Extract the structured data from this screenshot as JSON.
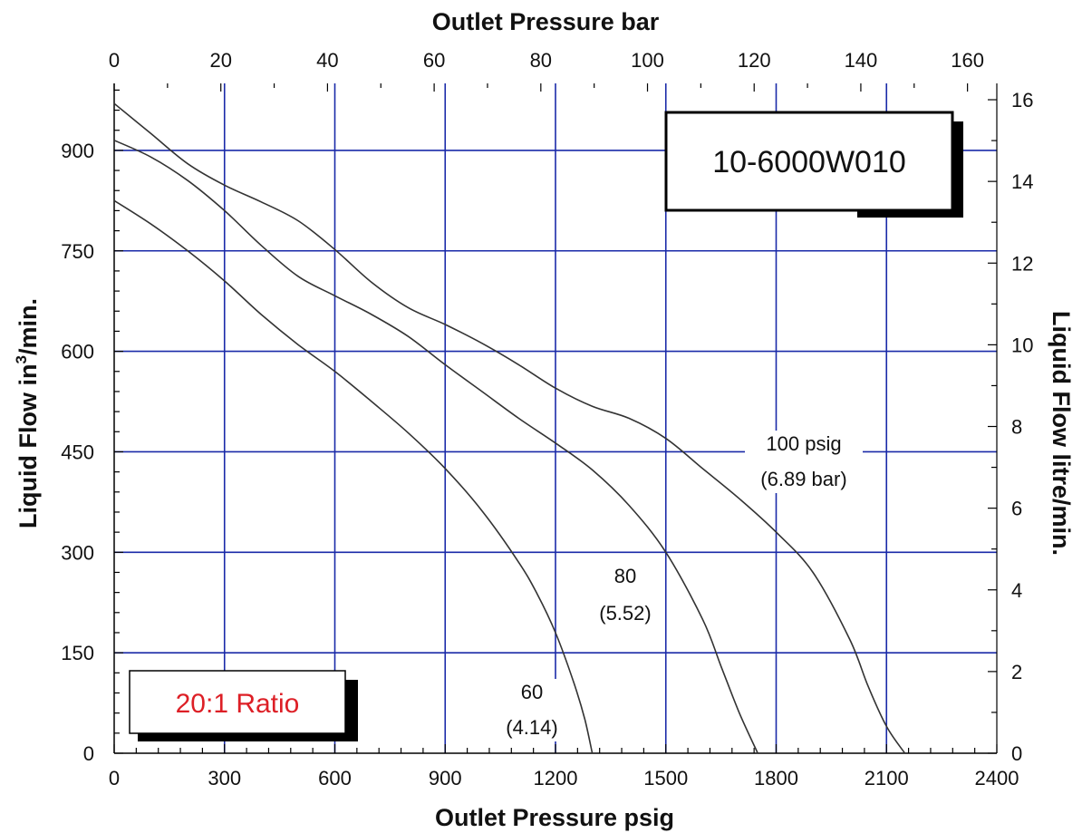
{
  "chart_data": {
    "type": "line",
    "title": "",
    "model_label": "10-6000W010",
    "ratio_label": "20:1 Ratio",
    "xlabel": "Outlet Pressure psig",
    "x2label": "Outlet Pressure bar",
    "ylabel_left": {
      "main": "Liquid Flow in",
      "sup": "3",
      "end": "/min."
    },
    "ylabel_right": "Liquid Flow litre/min.",
    "xlim": [
      0,
      2400
    ],
    "ylim": [
      0,
      1000
    ],
    "x2lim": [
      0,
      165.5
    ],
    "y2lim": [
      0,
      16.4
    ],
    "x_ticks": [
      "0",
      "300",
      "600",
      "900",
      "1200",
      "1500",
      "1800",
      "2100",
      "2400"
    ],
    "y_ticks": [
      "0",
      "150",
      "300",
      "450",
      "600",
      "750",
      "900"
    ],
    "x2_ticks": [
      "0",
      "20",
      "40",
      "60",
      "80",
      "100",
      "120",
      "140",
      "160"
    ],
    "y2_ticks": [
      "0",
      "2",
      "4",
      "6",
      "8",
      "10",
      "12",
      "14",
      "16"
    ],
    "grid": true,
    "colors": {
      "grid": "#1a2aa8",
      "curve": "#333333",
      "ratio_text": "#dd1f26",
      "text": "#111111"
    },
    "series": [
      {
        "name": "60 (4.14)",
        "annotation": [
          "60",
          "(4.14)"
        ],
        "x": [
          0,
          100,
          200,
          300,
          400,
          500,
          600,
          700,
          800,
          900,
          1000,
          1100,
          1150,
          1200,
          1250,
          1280,
          1300
        ],
        "y": [
          825,
          790,
          750,
          705,
          655,
          610,
          570,
          525,
          478,
          425,
          362,
          285,
          238,
          180,
          105,
          50,
          0
        ]
      },
      {
        "name": "80 (5.52)",
        "annotation": [
          "80",
          "(5.52)"
        ],
        "x": [
          0,
          100,
          200,
          300,
          400,
          500,
          600,
          700,
          800,
          900,
          1000,
          1100,
          1200,
          1300,
          1400,
          1500,
          1600,
          1650,
          1700,
          1750
        ],
        "y": [
          915,
          890,
          855,
          810,
          758,
          712,
          683,
          655,
          622,
          580,
          540,
          500,
          463,
          423,
          370,
          300,
          200,
          130,
          60,
          0
        ]
      },
      {
        "name": "100 psig (6.89 bar)",
        "annotation": [
          "100 psig",
          "(6.89 bar)"
        ],
        "x": [
          0,
          100,
          200,
          300,
          400,
          500,
          600,
          700,
          800,
          900,
          1000,
          1100,
          1200,
          1300,
          1400,
          1500,
          1600,
          1700,
          1800,
          1900,
          2000,
          2050,
          2100,
          2150
        ],
        "y": [
          970,
          925,
          880,
          848,
          823,
          795,
          752,
          703,
          665,
          640,
          612,
          580,
          545,
          518,
          500,
          470,
          425,
          380,
          330,
          270,
          170,
          100,
          40,
          0
        ]
      }
    ]
  }
}
